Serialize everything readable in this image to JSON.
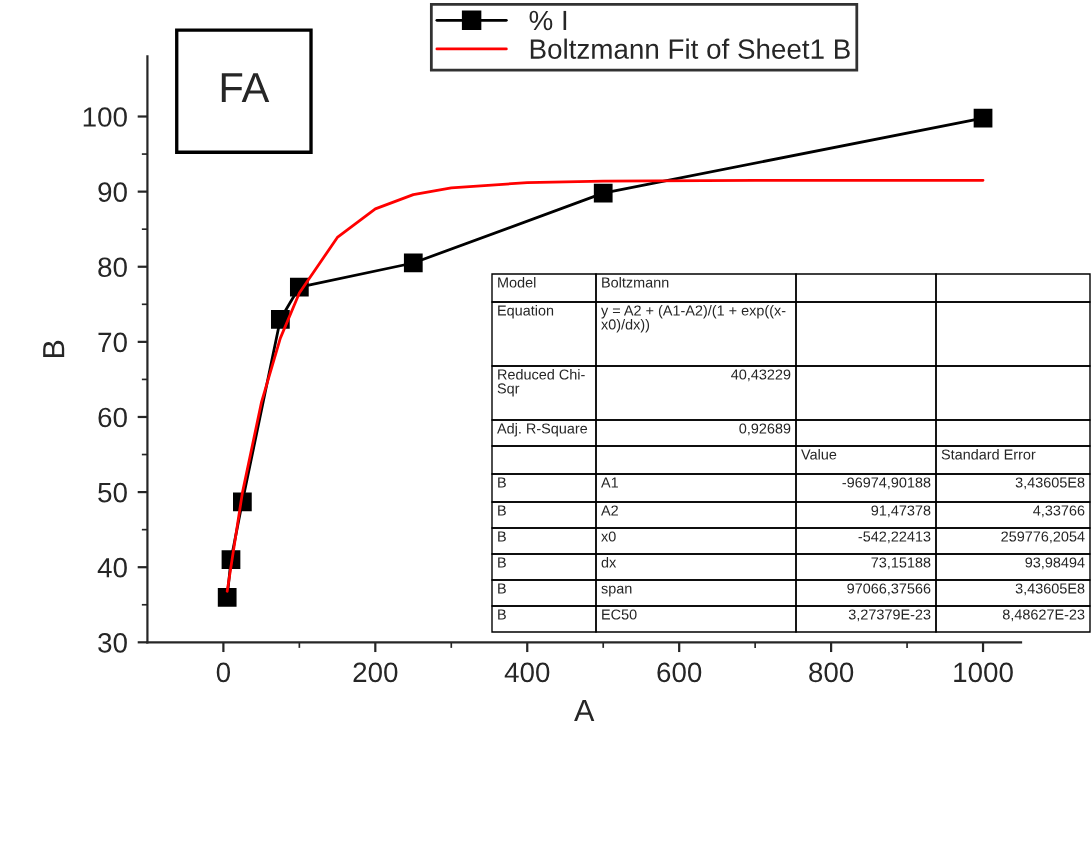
{
  "chart_data": {
    "type": "line",
    "xlabel": "A",
    "ylabel": "B",
    "xlim": [
      -100,
      1050
    ],
    "ylim": [
      30,
      108
    ],
    "xticks": [
      0,
      200,
      400,
      600,
      800,
      1000
    ],
    "yticks": [
      30,
      40,
      50,
      60,
      70,
      80,
      90,
      100
    ],
    "legend": "top",
    "grid": false,
    "series": [
      {
        "name": "% I",
        "color": "#000000",
        "marker": "square",
        "x": [
          5,
          10,
          25,
          75,
          100,
          250,
          500,
          1000
        ],
        "values": [
          36,
          41,
          48.7,
          73,
          77.3,
          80.5,
          89.8,
          99.8
        ]
      },
      {
        "name": "Boltzmann Fit of Sheet1 B",
        "color": "#ff0000",
        "marker": "none",
        "x": [
          5,
          25,
          50,
          75,
          100,
          150,
          200,
          250,
          300,
          400,
          500,
          700,
          1000
        ],
        "values": [
          36.8,
          49.9,
          61.9,
          70.5,
          76.5,
          83.9,
          87.7,
          89.6,
          90.5,
          91.2,
          91.4,
          91.5,
          91.5
        ]
      }
    ],
    "annotations": [
      "FA",
      "Model",
      "Boltzmann",
      "Equation",
      "y = A2 + (A1-A2)/(1 + exp((x-\nx0)/dx))",
      "Reduced Chi-\nSqr",
      "40,43229",
      "Adj. R-Square",
      "0,92689",
      "Value",
      "Standard Error",
      "B",
      "A1",
      "-96974,90188",
      "3,43605E8",
      "B",
      "A2",
      "91,47378",
      "4,33766",
      "B",
      "x0",
      "-542,22413",
      "259776,2054",
      "B",
      "dx",
      "73,15188",
      "93,98494",
      "B",
      "span",
      "97066,37566",
      "3,43605E8",
      "B",
      "EC50",
      "3,27379E-23",
      "8,48627E-23"
    ]
  }
}
